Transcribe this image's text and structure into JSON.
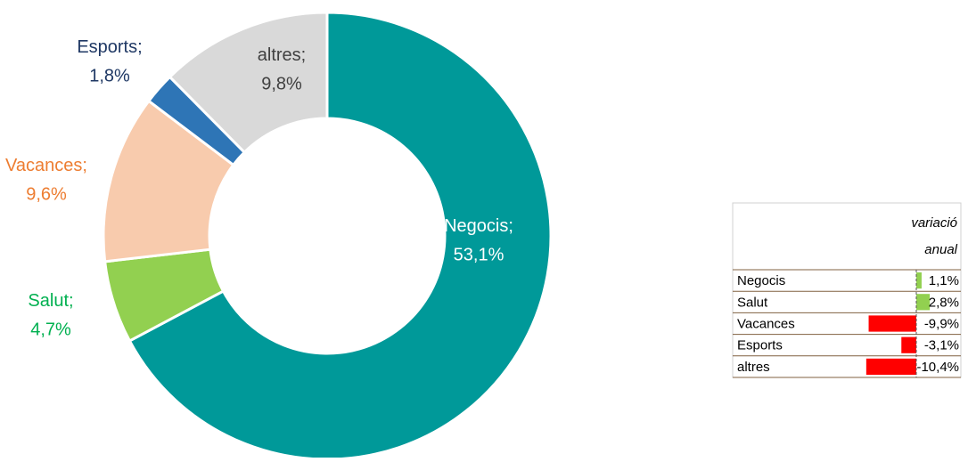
{
  "chart_data": {
    "type": "donut",
    "categories": [
      "Negocis",
      "Salut",
      "Vacances",
      "Esports",
      "altres"
    ],
    "values": [
      53.1,
      4.7,
      9.6,
      1.8,
      9.8
    ],
    "value_labels": [
      "53,1%",
      "4,7%",
      "9,6%",
      "1,8%",
      "9,8%"
    ],
    "label_separator": ";",
    "colors": [
      "#009999",
      "#92d050",
      "#f8cbad",
      "#2e75b6",
      "#d9d9d9"
    ],
    "label_colors": [
      "#ffffff",
      "#00b050",
      "#ed7d31",
      "#1f3864",
      "#404040"
    ]
  },
  "table": {
    "header": "variació anual",
    "rows": [
      {
        "name": "Negocis",
        "value": 1.1,
        "label": "1,1%"
      },
      {
        "name": "Salut",
        "value": 2.8,
        "label": "2,8%"
      },
      {
        "name": "Vacances",
        "value": -9.9,
        "label": "-9,9%"
      },
      {
        "name": "Esports",
        "value": -3.1,
        "label": "-3,1%"
      },
      {
        "name": "altres",
        "value": -10.4,
        "label": "-10,4%"
      }
    ],
    "positive_color": "#92d050",
    "negative_color": "#ff0000"
  }
}
